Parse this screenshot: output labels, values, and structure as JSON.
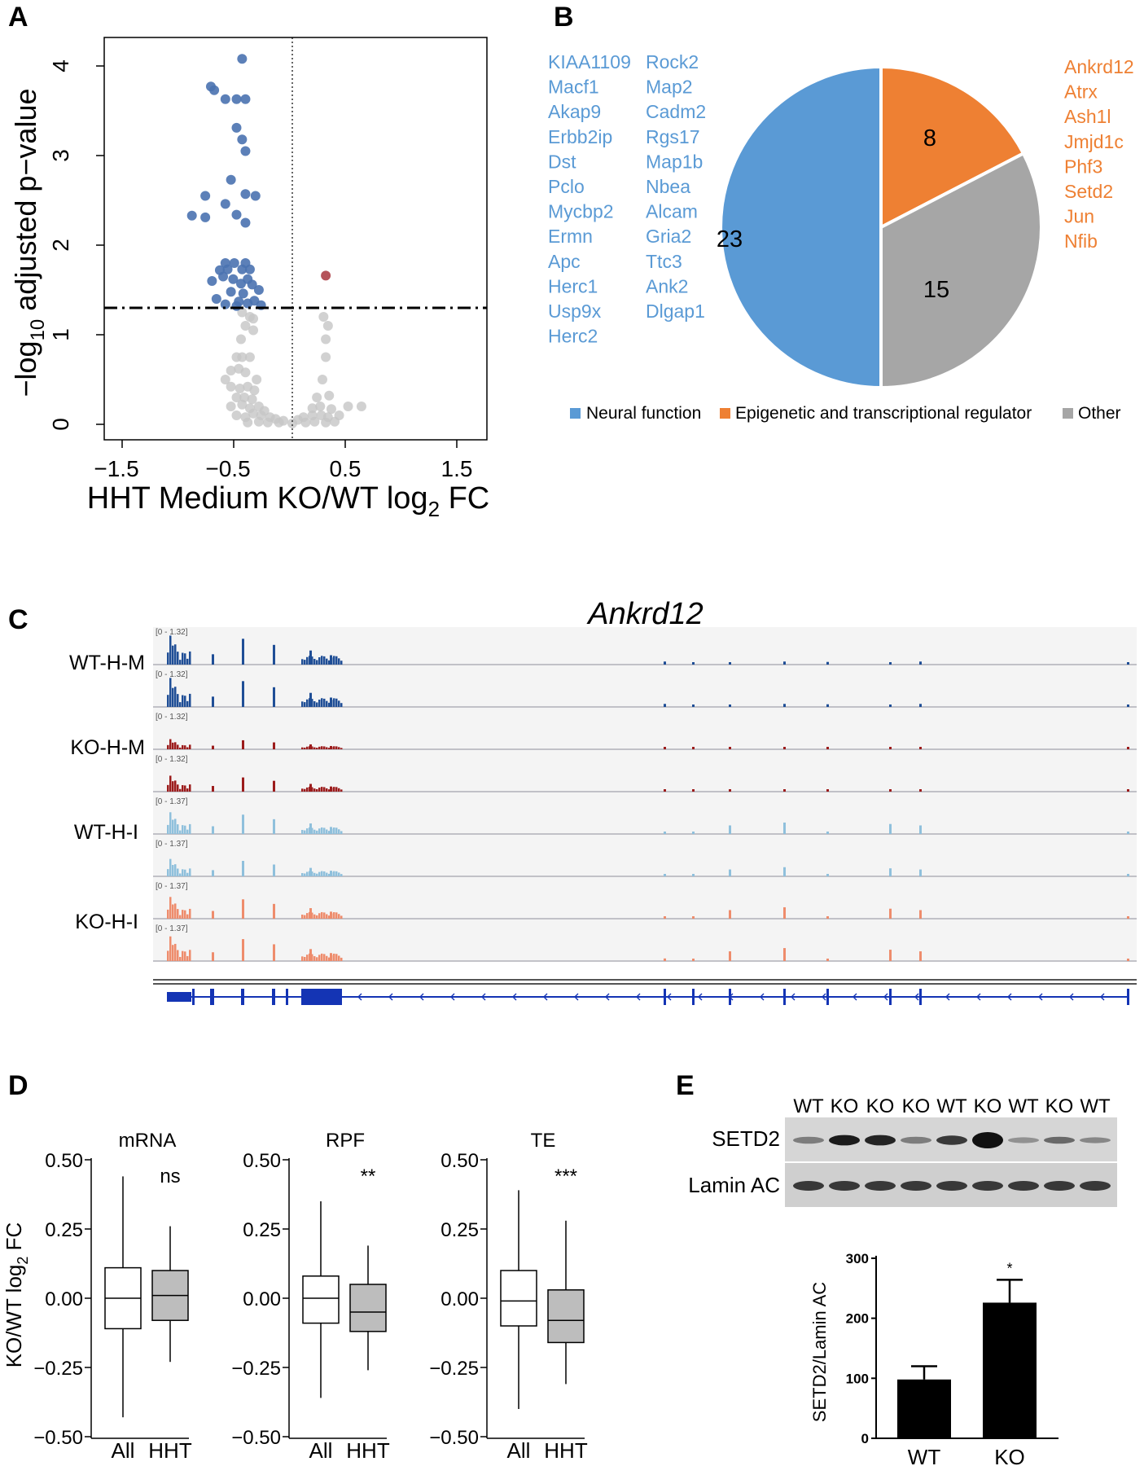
{
  "panel_labels": [
    "A",
    "B",
    "C",
    "D",
    "E"
  ],
  "panelA": {
    "ylabel_prefix": "−log",
    "ylabel_sub": "10",
    "ylabel_suffix": " adjusted p−value",
    "xlabel_main": "HHT Medium KO/WT log",
    "xlabel_sub": "2",
    "xlabel_end": " FC",
    "xticks": [
      "−1.5",
      "−0.5",
      "0.5",
      "1.5"
    ],
    "yticks": [
      "0",
      "1",
      "2",
      "3",
      "4"
    ]
  },
  "panelB": {
    "neural_genes_col1": [
      "KIAA1109",
      "Macf1",
      "Akap9",
      "Erbb2ip",
      "Dst",
      "Pclo",
      "Mycbp2",
      "Ermn",
      "Apc",
      "Herc1",
      "Usp9x",
      "Herc2"
    ],
    "neural_genes_col2": [
      "Rock2",
      "Map2",
      "Cadm2",
      "Rgs17",
      "Map1b",
      "Nbea",
      "Alcam",
      "Gria2",
      "Ttc3",
      "Ank2",
      "Dlgap1"
    ],
    "epigenetic_genes": [
      "Ankrd12",
      "Atrx",
      "Ash1l",
      "Jmjd1c",
      "Phf3",
      "Setd2",
      "Jun",
      "Nfib"
    ],
    "legend": [
      "Neural function",
      "Epigenetic and transcriptional regulator",
      "Other"
    ]
  },
  "panelC": {
    "title": "Ankrd12",
    "track_labels": [
      "WT-H-M",
      "KO-H-M",
      "WT-H-I",
      "KO-H-I"
    ],
    "range_labels": [
      "[0 - 1.32]",
      "[0 - 1.32]",
      "[0 - 1.32]",
      "[0 - 1.32]",
      "[0 - 1.37]",
      "[0 - 1.37]",
      "[0 - 1.37]",
      "[0 - 1.37]"
    ]
  },
  "panelD": {
    "ylabel": "KO/WT log",
    "ylabel_sub": "2",
    "ylabel_end": " FC",
    "yticks": [
      "0.50",
      "0.25",
      "0.00",
      "−0.25",
      "−0.50"
    ],
    "xcats": [
      "All",
      "HHT"
    ]
  },
  "panelE": {
    "lane_labels": [
      "WT",
      "KO",
      "KO",
      "KO",
      "WT",
      "KO",
      "WT",
      "KO",
      "WT"
    ],
    "blot_rows": [
      "SETD2",
      "Lamin AC"
    ],
    "ylabel": "SETD2/Lamin AC",
    "yticks": [
      "0",
      "100",
      "200",
      "300"
    ],
    "sig": "*"
  },
  "colors": {
    "blue": "#5a9ad5",
    "orange": "#ee8033",
    "gray": "#a6a6a6",
    "wt_m": "#1f4e96",
    "ko_m": "#9c1c1c",
    "wt_i": "#8fc0dc",
    "ko_i": "#ee8c6c",
    "gene_model": "#1434b4"
  },
  "chart_data": [
    {
      "type": "scatter",
      "title": "",
      "xlabel": "HHT Medium KO/WT log2 FC",
      "ylabel": "−log10 adjusted p−value",
      "xlim": [
        -1.75,
        1.75
      ],
      "ylim": [
        -0.1,
        4.2
      ],
      "threshold_y": 1.3,
      "vline_x": 0,
      "significant_down": [
        [
          -0.45,
          4.08
        ],
        [
          -0.73,
          3.77
        ],
        [
          -0.7,
          3.73
        ],
        [
          -0.6,
          3.63
        ],
        [
          -0.5,
          3.63
        ],
        [
          -0.42,
          3.63
        ],
        [
          -0.5,
          3.31
        ],
        [
          -0.45,
          3.18
        ],
        [
          -0.42,
          3.05
        ],
        [
          -0.55,
          2.73
        ],
        [
          -0.78,
          2.55
        ],
        [
          -0.42,
          2.57
        ],
        [
          -0.6,
          2.46
        ],
        [
          -0.33,
          2.55
        ],
        [
          -0.9,
          2.33
        ],
        [
          -0.78,
          2.31
        ],
        [
          -0.5,
          2.34
        ],
        [
          -0.42,
          2.25
        ],
        [
          -0.6,
          1.8
        ],
        [
          -0.52,
          1.8
        ],
        [
          -0.42,
          1.8
        ],
        [
          -0.65,
          1.72
        ],
        [
          -0.58,
          1.73
        ],
        [
          -0.45,
          1.73
        ],
        [
          -0.38,
          1.73
        ],
        [
          -0.72,
          1.6
        ],
        [
          -0.62,
          1.65
        ],
        [
          -0.53,
          1.62
        ],
        [
          -0.46,
          1.57
        ],
        [
          -0.4,
          1.62
        ],
        [
          -0.36,
          1.56
        ],
        [
          -0.55,
          1.48
        ],
        [
          -0.44,
          1.46
        ],
        [
          -0.3,
          1.5
        ],
        [
          -0.68,
          1.4
        ],
        [
          -0.48,
          1.37
        ],
        [
          -0.34,
          1.38
        ],
        [
          -0.4,
          1.35
        ],
        [
          -0.6,
          1.34
        ],
        [
          -0.28,
          1.33
        ],
        [
          -0.5,
          1.32
        ]
      ],
      "significant_up": [
        [
          0.3,
          1.66
        ]
      ],
      "not_significant": [
        [
          -0.45,
          1.25
        ],
        [
          -0.38,
          1.2
        ],
        [
          -0.35,
          1.18
        ],
        [
          0.28,
          1.2
        ],
        [
          -0.42,
          1.1
        ],
        [
          -0.35,
          1.05
        ],
        [
          0.32,
          1.1
        ],
        [
          -0.46,
          0.95
        ],
        [
          0.3,
          0.95
        ],
        [
          -0.5,
          0.75
        ],
        [
          -0.45,
          0.75
        ],
        [
          -0.38,
          0.75
        ],
        [
          0.3,
          0.75
        ],
        [
          -0.55,
          0.6
        ],
        [
          -0.48,
          0.62
        ],
        [
          -0.42,
          0.58
        ],
        [
          -0.6,
          0.5
        ],
        [
          -0.32,
          0.5
        ],
        [
          0.27,
          0.5
        ],
        [
          -0.55,
          0.42
        ],
        [
          -0.47,
          0.4
        ],
        [
          -0.4,
          0.42
        ],
        [
          -0.34,
          0.38
        ],
        [
          -0.5,
          0.3
        ],
        [
          -0.43,
          0.3
        ],
        [
          -0.36,
          0.28
        ],
        [
          0.22,
          0.3
        ],
        [
          0.33,
          0.32
        ],
        [
          -0.55,
          0.2
        ],
        [
          -0.45,
          0.22
        ],
        [
          -0.38,
          0.18
        ],
        [
          -0.3,
          0.2
        ],
        [
          -0.25,
          0.15
        ],
        [
          0.18,
          0.18
        ],
        [
          0.25,
          0.2
        ],
        [
          0.35,
          0.17
        ],
        [
          0.5,
          0.2
        ],
        [
          0.62,
          0.2
        ],
        [
          -0.5,
          0.1
        ],
        [
          -0.42,
          0.08
        ],
        [
          -0.35,
          0.12
        ],
        [
          -0.28,
          0.1
        ],
        [
          -0.2,
          0.08
        ],
        [
          -0.15,
          0.06
        ],
        [
          -0.08,
          0.04
        ],
        [
          0.05,
          0.05
        ],
        [
          0.1,
          0.08
        ],
        [
          0.18,
          0.1
        ],
        [
          0.26,
          0.1
        ],
        [
          0.32,
          0.08
        ],
        [
          0.42,
          0.1
        ],
        [
          -0.4,
          0.02
        ],
        [
          -0.3,
          0.03
        ],
        [
          -0.22,
          0.02
        ],
        [
          -0.12,
          0.02
        ],
        [
          0.0,
          0.01
        ],
        [
          0.12,
          0.02
        ],
        [
          0.2,
          0.03
        ],
        [
          0.3,
          0.02
        ],
        [
          0.38,
          0.03
        ]
      ]
    },
    {
      "type": "pie",
      "categories": [
        "Neural function",
        "Epigenetic and transcriptional regulator",
        "Other"
      ],
      "values": [
        23,
        8,
        15
      ]
    },
    {
      "type": "box",
      "title": "mRNA",
      "categories": [
        "All",
        "HHT"
      ],
      "annotation": "ns",
      "boxes": [
        {
          "min": -0.43,
          "q1": -0.11,
          "median": 0.0,
          "q3": 0.11,
          "max": 0.44
        },
        {
          "min": -0.23,
          "q1": -0.08,
          "median": 0.01,
          "q3": 0.1,
          "max": 0.26
        }
      ],
      "ylim": [
        -0.5,
        0.5
      ]
    },
    {
      "type": "box",
      "title": "RPF",
      "categories": [
        "All",
        "HHT"
      ],
      "annotation": "**",
      "boxes": [
        {
          "min": -0.36,
          "q1": -0.09,
          "median": 0.0,
          "q3": 0.08,
          "max": 0.35
        },
        {
          "min": -0.26,
          "q1": -0.12,
          "median": -0.05,
          "q3": 0.05,
          "max": 0.19
        }
      ],
      "ylim": [
        -0.5,
        0.5
      ]
    },
    {
      "type": "box",
      "title": "TE",
      "categories": [
        "All",
        "HHT"
      ],
      "annotation": "***",
      "boxes": [
        {
          "min": -0.4,
          "q1": -0.1,
          "median": -0.01,
          "q3": 0.1,
          "max": 0.39
        },
        {
          "min": -0.31,
          "q1": -0.16,
          "median": -0.08,
          "q3": 0.03,
          "max": 0.28
        }
      ],
      "ylim": [
        -0.5,
        0.5
      ]
    },
    {
      "type": "bar",
      "categories": [
        "WT",
        "KO"
      ],
      "values": [
        98,
        226
      ],
      "errors": [
        22,
        38
      ],
      "ylabel": "SETD2/Lamin AC",
      "ylim": [
        0,
        300
      ]
    }
  ]
}
